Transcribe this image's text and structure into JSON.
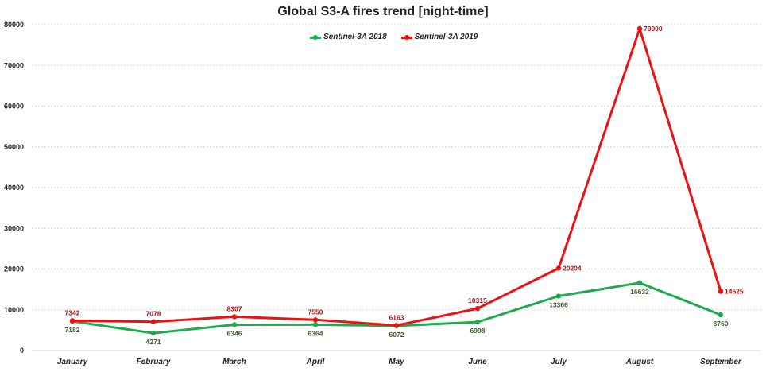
{
  "chart_data": {
    "type": "line",
    "title": "Global S3-A fires trend  [night-time]",
    "xlabel": "",
    "ylabel": "",
    "categories": [
      "January",
      "February",
      "March",
      "April",
      "May",
      "June",
      "July",
      "August",
      "September"
    ],
    "ylim": [
      0,
      80000
    ],
    "yticks": [
      0,
      10000,
      20000,
      30000,
      40000,
      50000,
      60000,
      70000,
      80000
    ],
    "ytick_labels": [
      "0",
      "10000",
      "20000",
      "30000",
      "40000",
      "50000",
      "60000",
      "70000",
      "80000"
    ],
    "grid": true,
    "legend_position": "top-center",
    "series": [
      {
        "name": "Sentinel-3A 2018",
        "color": "#1faa4f",
        "label_color": "#3d5e27",
        "label_position": "below",
        "values": [
          7182,
          4271,
          6346,
          6364,
          6072,
          6998,
          13366,
          16632,
          8760
        ],
        "labels": [
          "7182",
          "4271",
          "6346",
          "6364",
          "6072",
          "6998",
          "13366",
          "16632",
          "8760"
        ]
      },
      {
        "name": "Sentinel-3A 2019",
        "color": "#ee1111",
        "label_color": "#b01515",
        "label_position": "above",
        "values": [
          7342,
          7078,
          8307,
          7550,
          6163,
          10315,
          20204,
          79000,
          14525
        ],
        "labels": [
          "7342",
          "7078",
          "8307",
          "7550",
          "6163",
          "10315",
          "20204",
          "79000",
          "14525"
        ]
      }
    ]
  }
}
